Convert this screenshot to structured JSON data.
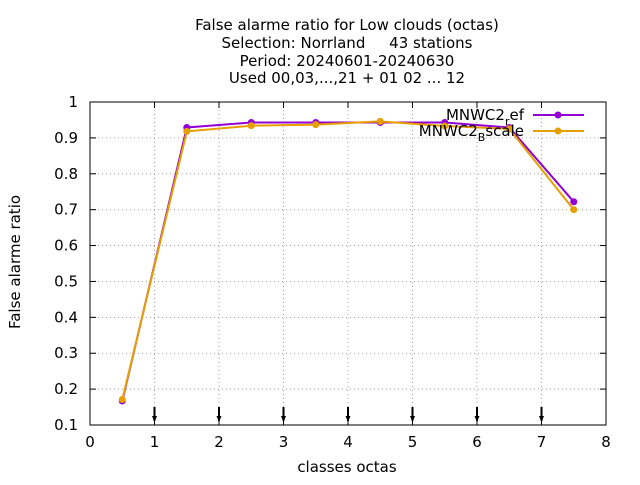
{
  "chart_data": {
    "type": "line",
    "title_lines": [
      "False alarme ratio  for Low clouds (octas)",
      "Selection: Norrland     43 stations",
      "Period: 20240601-20240630",
      "Used 00,03,...,21 + 01 02 ... 12"
    ],
    "xlabel": "classes octas",
    "ylabel": "False alarme ratio",
    "xlim": [
      0,
      8
    ],
    "ylim": [
      0.1,
      1
    ],
    "xticks": [
      "0",
      "1",
      "2",
      "3",
      "4",
      "5",
      "6",
      "7",
      "8"
    ],
    "yticks": [
      "0.1",
      "0.2",
      "0.3",
      "0.4",
      "0.5",
      "0.6",
      "0.7",
      "0.8",
      "0.9",
      "1"
    ],
    "grid": true,
    "legend_position": "top-right",
    "class_markers": [
      1,
      2,
      3,
      4,
      5,
      6,
      7
    ],
    "series": [
      {
        "name": "MNWC2_ref",
        "name_main": "MNWC2",
        "name_sub": "r",
        "name_tail": "ef",
        "color": "#9400d3",
        "x": [
          0.5,
          1.5,
          2.5,
          3.5,
          4.5,
          5.5,
          6.5,
          7.5
        ],
        "y": [
          0.167,
          0.929,
          0.943,
          0.943,
          0.943,
          0.943,
          0.929,
          0.722
        ]
      },
      {
        "name": "MNWC2_Bscale",
        "name_main": "MNWC2",
        "name_sub": "B",
        "name_tail": "scale",
        "color": "#e69f00",
        "x": [
          0.5,
          1.5,
          2.5,
          3.5,
          4.5,
          5.5,
          6.5,
          7.5
        ],
        "y": [
          0.171,
          0.918,
          0.934,
          0.937,
          0.946,
          0.933,
          0.925,
          0.7
        ]
      }
    ]
  }
}
